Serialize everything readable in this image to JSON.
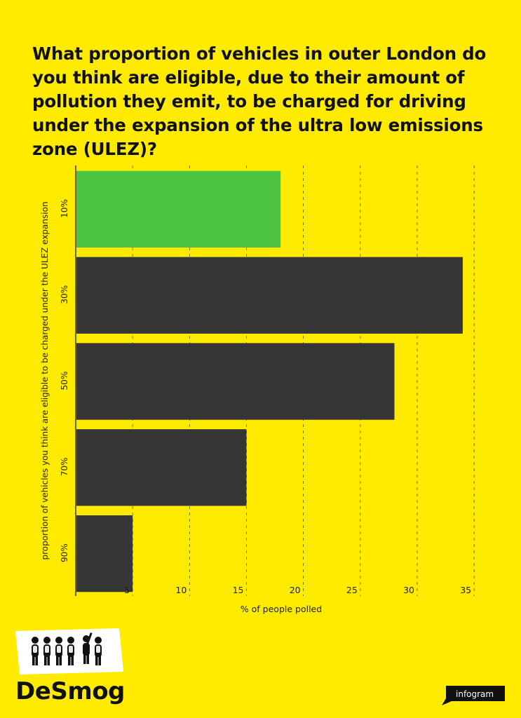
{
  "chart_data": {
    "type": "bar",
    "orientation": "horizontal",
    "title": "What proportion of vehicles in outer London do you think are eligible, due to their amount of pollution they emit, to be charged for driving under the expansion of the ultra low emissions zone (ULEZ)?",
    "categories": [
      "10%",
      "30%",
      "50%",
      "70%",
      "90%"
    ],
    "values": [
      18,
      34,
      28,
      15,
      5
    ],
    "bar_colors": [
      "#4CC442",
      "#363636",
      "#363636",
      "#363636",
      "#363636"
    ],
    "xlabel": "% of people polled",
    "ylabel": "proportion of vehicles you think are eligible to be charged under the ULEZ expansion",
    "xticks": [
      5,
      10,
      15,
      20,
      25,
      30,
      35
    ],
    "xlim": [
      0,
      35.3
    ],
    "grid": true
  },
  "brand": {
    "logo_text": "DeSmog",
    "badge_text": "infogram"
  },
  "colors": {
    "background": "#FFEB00",
    "highlight_bar": "#4CC442",
    "bar": "#363636"
  }
}
